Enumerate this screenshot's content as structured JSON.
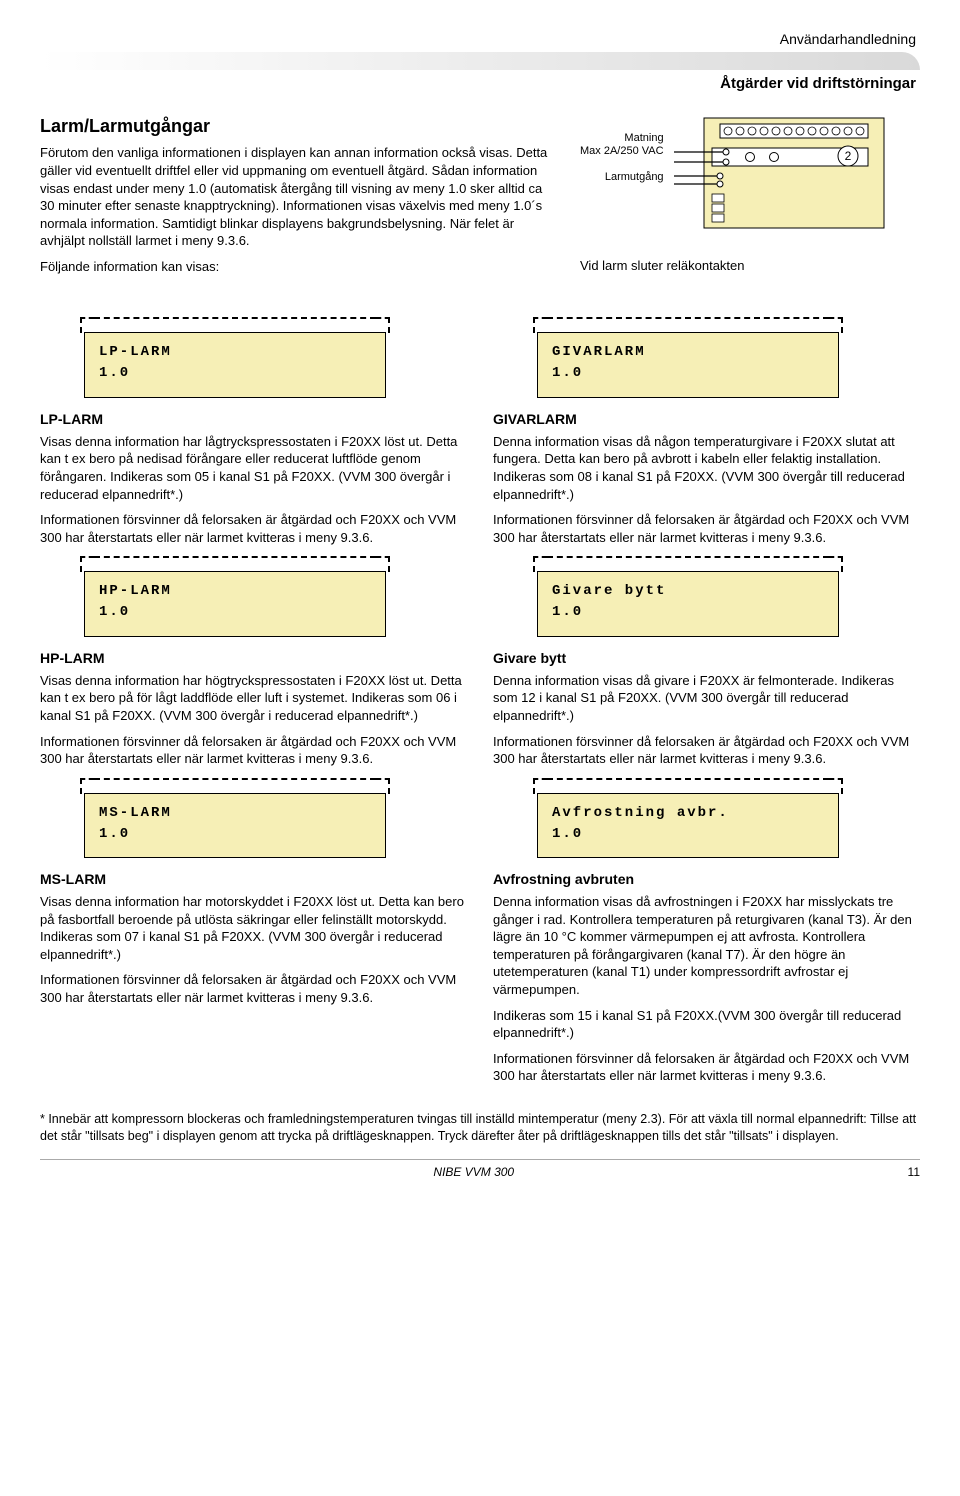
{
  "header": {
    "sup": "Användarhandledning",
    "sub": "Åtgärder vid driftstörningar"
  },
  "intro": {
    "title": "Larm/Larmutgångar",
    "body": "Förutom den vanliga informationen i displayen kan annan information också visas. Detta gäller vid eventuellt driftfel eller vid uppmaning om eventuell åtgärd. Sådan information visas endast under meny 1.0 (automatisk återgång till visning av meny 1.0 sker alltid ca 30 minuter efter senaste knapptryckning). Informationen visas växelvis med meny 1.0´s normala information. Samtidigt blinkar displayens bakgrundsbelysning. När felet är avhjälpt nollställ larmet i meny 9.3.6.",
    "body2": "Följande information kan visas:"
  },
  "diagram": {
    "label1a": "Matning",
    "label1b": "Max 2A/250 VAC",
    "label2": "Larmutgång",
    "badge": "2",
    "caption": "Vid larm sluter reläkontakten",
    "colors": {
      "module_bg": "#f6efb6",
      "frame": "#000000"
    }
  },
  "blocks": [
    {
      "disp_line1": "LP-LARM",
      "disp_line2": "1.0",
      "title": "LP-LARM",
      "paras": [
        "Visas denna information har lågtryckspressostaten i F20XX löst ut. Detta kan t ex bero på nedisad förångare eller reducerat luftflöde genom förångaren. Indikeras som 05 i kanal S1 på F20XX. (VVM 300 övergår i reducerad elpannedrift*.)",
        "Informationen försvinner då felorsaken är åtgärdad och F20XX och VVM 300 har återstartats eller när larmet kvitteras i meny 9.3.6."
      ]
    },
    {
      "disp_line1": "GIVARLARM",
      "disp_line2": "1.0",
      "title": "GIVARLARM",
      "paras": [
        "Denna information visas då någon temperaturgivare i F20XX slutat att fungera. Detta kan bero på avbrott i kabeln eller felaktig installation. Indikeras som 08 i kanal S1 på F20XX. (VVM 300 övergår till reducerad elpannedrift*.)",
        "Informationen försvinner då felorsaken är åtgärdad och F20XX och VVM 300 har återstartats eller när larmet kvitteras i meny 9.3.6."
      ]
    },
    {
      "disp_line1": "HP-LARM",
      "disp_line2": "1.0",
      "title": "HP-LARM",
      "paras": [
        "Visas denna information har högtryckspressostaten i F20XX löst ut. Detta kan t ex bero på för lågt laddflöde eller luft i systemet. Indikeras som 06 i kanal S1 på F20XX. (VVM 300 övergår i reducerad elpannedrift*.)",
        "Informationen försvinner då felorsaken är åtgärdad och F20XX och VVM 300 har återstartats eller när larmet kvitteras i meny 9.3.6."
      ]
    },
    {
      "disp_line1": "Givare bytt",
      "disp_line2": "1.0",
      "title": "Givare bytt",
      "paras": [
        "Denna information visas då givare i F20XX är felmonterade. Indikeras som 12 i kanal S1 på F20XX. (VVM 300 övergår till reducerad elpannedrift*.)",
        "Informationen försvinner då felorsaken är åtgärdad och F20XX och VVM 300 har återstartats eller när larmet kvitteras i meny 9.3.6."
      ]
    },
    {
      "disp_line1": "MS-LARM",
      "disp_line2": "1.0",
      "title": "MS-LARM",
      "paras": [
        "Visas denna information har motorskyddet i F20XX löst ut. Detta kan bero på fasbortfall beroende på utlösta säkringar eller felinställt motorskydd. Indikeras som 07 i kanal S1 på F20XX. (VVM 300 övergår i reducerad elpannedrift*.)",
        "Informationen försvinner då felorsaken är åtgärdad och F20XX och VVM 300 har återstartats eller när larmet kvitteras i meny 9.3.6."
      ]
    },
    {
      "disp_line1": "Avfrostning avbr.",
      "disp_line2": "1.0",
      "title": "Avfrostning avbruten",
      "paras": [
        "Denna information visas då avfrostningen i F20XX har misslyckats tre gånger i rad. Kontrollera temperaturen på returgivaren (kanal T3). Är den lägre än 10 °C kommer värmepumpen ej att avfrosta. Kontrollera temperaturen på förångargivaren (kanal T7). Är den högre än utetemperaturen (kanal T1) under kompressordrift avfrostar ej värmepumpen.",
        "Indikeras som 15 i kanal S1 på F20XX.(VVM 300 övergår till reducerad elpannedrift*.)",
        "Informationen försvinner då felorsaken är åtgärdad och F20XX och VVM 300 har återstartats eller när larmet kvitteras i meny 9.3.6."
      ]
    }
  ],
  "footnote": "* Innebär att kompressorn blockeras och framledningstemperaturen tvingas till inställd mintemperatur (meny 2.3). För att växla till normal elpannedrift: Tillse att det står \"tillsats beg\" i displayen genom att trycka på driftlägesknappen. Tryck därefter åter på driftlägesknappen tills det står \"tillsats\" i displayen.",
  "footer": {
    "center": "NIBE VVM 300",
    "page": "11"
  }
}
